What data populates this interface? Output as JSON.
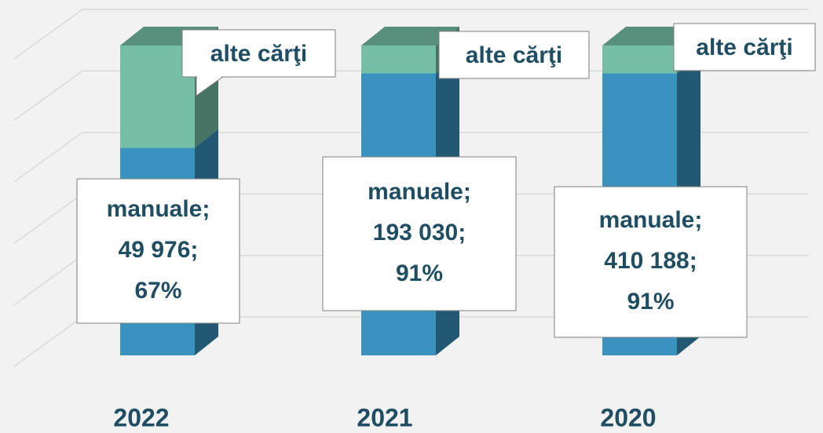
{
  "chart_data": {
    "type": "bar3d_stacked",
    "categories": [
      "2022",
      "2021",
      "2020"
    ],
    "series": [
      {
        "name": "manuale",
        "color": "#3a93bf",
        "values": [
          67,
          91,
          91
        ],
        "value_labels": [
          [
            "manuale;",
            "49 976;",
            "67%"
          ],
          [
            "manuale;",
            "193 030;",
            "91%"
          ],
          [
            "manuale;",
            "410 188;",
            "91%"
          ]
        ]
      },
      {
        "name": "alte cărţi",
        "color": "#76bfa6",
        "values": [
          33,
          9,
          9
        ]
      }
    ],
    "ylim": [
      0,
      100
    ],
    "yticks": [
      0,
      20,
      40,
      60,
      80,
      100
    ],
    "grid": true
  }
}
